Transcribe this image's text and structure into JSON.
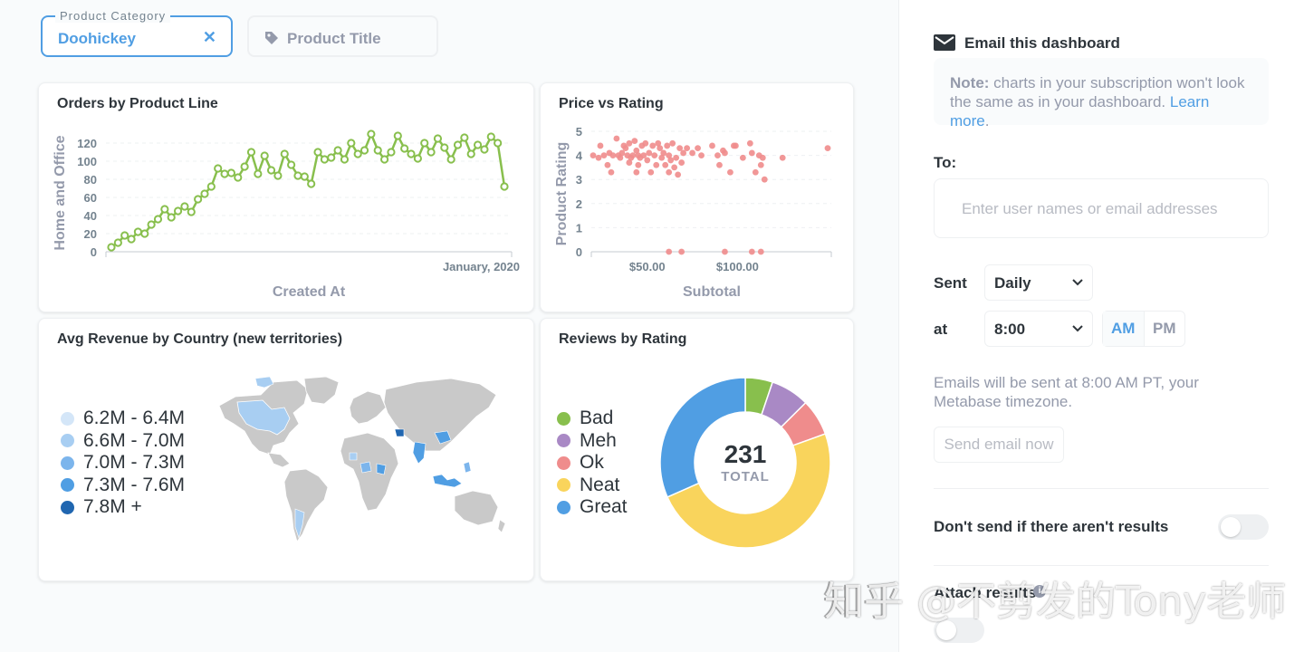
{
  "filters": {
    "category_label": "Product Category",
    "category_value": "Doohickey",
    "title_placeholder": "Product Title"
  },
  "cards": {
    "orders": {
      "title": "Orders by Product Line",
      "chart_data": {
        "type": "line",
        "title": "Orders by Product Line",
        "xlabel": "Created At",
        "ylabel": "Home and Office",
        "x_tick_labels": [
          "January, 2020"
        ],
        "yticks": [
          0,
          20,
          40,
          60,
          80,
          100,
          120
        ],
        "ylim": [
          0,
          130
        ],
        "color": "#88bf4d",
        "values": [
          5,
          10,
          18,
          14,
          22,
          20,
          30,
          36,
          47,
          38,
          45,
          50,
          44,
          58,
          64,
          72,
          92,
          86,
          87,
          82,
          94,
          110,
          86,
          106,
          90,
          84,
          108,
          96,
          84,
          83,
          75,
          110,
          102,
          104,
          112,
          102,
          120,
          108,
          112,
          130,
          112,
          102,
          110,
          128,
          114,
          108,
          103,
          120,
          110,
          125,
          115,
          102,
          118,
          126,
          108,
          118,
          113,
          127,
          120,
          72
        ],
        "grid": true
      }
    },
    "price": {
      "title": "Price vs Rating",
      "chart_data": {
        "type": "scatter",
        "title": "Price vs Rating",
        "xlabel": "Subtotal",
        "ylabel": "Product Rating",
        "x_tick_labels": [
          "$50.00",
          "$100.00"
        ],
        "xticks": [
          50,
          100
        ],
        "xlim": [
          19,
          152
        ],
        "yticks": [
          0,
          1,
          2,
          3,
          4,
          5
        ],
        "ylim": [
          0,
          5
        ],
        "color": "#ef8c8c",
        "points": [
          [
            20,
            4.0
          ],
          [
            23,
            3.9
          ],
          [
            24,
            4.4
          ],
          [
            26,
            4.0
          ],
          [
            28,
            3.6
          ],
          [
            29,
            4.1
          ],
          [
            30,
            3.3
          ],
          [
            31,
            4.0
          ],
          [
            33,
            4.7
          ],
          [
            34,
            4.0
          ],
          [
            35,
            3.9
          ],
          [
            36,
            4.1
          ],
          [
            37,
            4.4
          ],
          [
            38,
            4.3
          ],
          [
            39,
            4.0
          ],
          [
            40,
            4.5
          ],
          [
            40,
            3.7
          ],
          [
            41,
            3.9
          ],
          [
            42,
            4.0
          ],
          [
            43,
            4.6
          ],
          [
            44,
            3.3
          ],
          [
            44,
            4.2
          ],
          [
            45,
            3.6
          ],
          [
            45,
            4.0
          ],
          [
            46,
            3.9
          ],
          [
            47,
            4.4
          ],
          [
            48,
            4.0
          ],
          [
            49,
            4.5
          ],
          [
            50,
            3.8
          ],
          [
            51,
            4.1
          ],
          [
            52,
            3.3
          ],
          [
            53,
            4.4
          ],
          [
            54,
            4.0
          ],
          [
            55,
            3.6
          ],
          [
            56,
            4.5
          ],
          [
            57,
            4.3
          ],
          [
            58,
            3.9
          ],
          [
            59,
            4.1
          ],
          [
            60,
            3.6
          ],
          [
            61,
            4.4
          ],
          [
            62,
            3.3
          ],
          [
            62,
            4.0
          ],
          [
            63,
            3.8
          ],
          [
            64,
            4.5
          ],
          [
            65,
            3.5
          ],
          [
            66,
            3.9
          ],
          [
            67,
            3.2
          ],
          [
            68,
            4.3
          ],
          [
            69,
            3.7
          ],
          [
            70,
            4.1
          ],
          [
            72,
            4.3
          ],
          [
            75,
            4.1
          ],
          [
            78,
            4.3
          ],
          [
            80,
            4.0
          ],
          [
            86,
            4.4
          ],
          [
            89,
            4.0
          ],
          [
            90,
            3.6
          ],
          [
            92,
            4.2
          ],
          [
            93,
            4.1
          ],
          [
            96,
            3.3
          ],
          [
            98,
            4.4
          ],
          [
            99,
            4.4
          ],
          [
            103,
            3.9
          ],
          [
            107,
            4.5
          ],
          [
            108,
            4.1
          ],
          [
            110,
            3.3
          ],
          [
            112,
            4.0
          ],
          [
            113,
            3.6
          ],
          [
            114,
            3.9
          ],
          [
            115,
            3.0
          ],
          [
            125,
            3.9
          ],
          [
            150,
            4.3
          ],
          [
            62,
            0
          ],
          [
            69,
            0
          ],
          [
            93,
            0
          ],
          [
            108,
            0
          ],
          [
            113,
            0
          ]
        ],
        "grid": true
      }
    },
    "revenue": {
      "title": "Avg Revenue by Country (new territories)",
      "legend": [
        {
          "label": "6.2M - 6.4M",
          "color": "#d4e6f8"
        },
        {
          "label": "6.6M - 7.0M",
          "color": "#a8cef2"
        },
        {
          "label": "7.0M - 7.3M",
          "color": "#7cb5ec"
        },
        {
          "label": "7.3M - 7.6M",
          "color": "#509ee3"
        },
        {
          "label": "7.8M +",
          "color": "#2066b0"
        }
      ]
    },
    "reviews": {
      "title": "Reviews by Rating",
      "total": "231",
      "total_label": "TOTAL",
      "chart_data": {
        "type": "pie",
        "title": "Reviews by Rating",
        "total": 231,
        "slices": [
          {
            "name": "Bad",
            "value": 12,
            "color": "#88bf4d"
          },
          {
            "name": "Meh",
            "value": 17,
            "color": "#a989c5"
          },
          {
            "name": "Ok",
            "value": 16,
            "color": "#ef8c8c"
          },
          {
            "name": "Neat",
            "value": 113,
            "color": "#f9d45c"
          },
          {
            "name": "Great",
            "value": 73,
            "color": "#509ee3"
          }
        ]
      }
    }
  },
  "sidebar": {
    "email_title": "Email this dashboard",
    "note_bold": "Note:",
    "note_text": " charts in your subscription won't look the same as in your dashboard. ",
    "note_link": "Learn more",
    "note_end": ".",
    "to_label": "To:",
    "to_placeholder": "Enter user names or email addresses",
    "sent_label": "Sent",
    "sent_value": "Daily",
    "at_label": "at",
    "at_value": "8:00",
    "am": "AM",
    "pm": "PM",
    "timezone_note": "Emails will be sent at 8:00 AM PT, your Metabase timezone.",
    "send_now": "Send email now",
    "dont_send_label": "Don't send if there aren't results",
    "attach_label": "Attach results"
  },
  "watermark": "知乎 @不剪发的Tony老师",
  "accent_color": "#509ee3"
}
